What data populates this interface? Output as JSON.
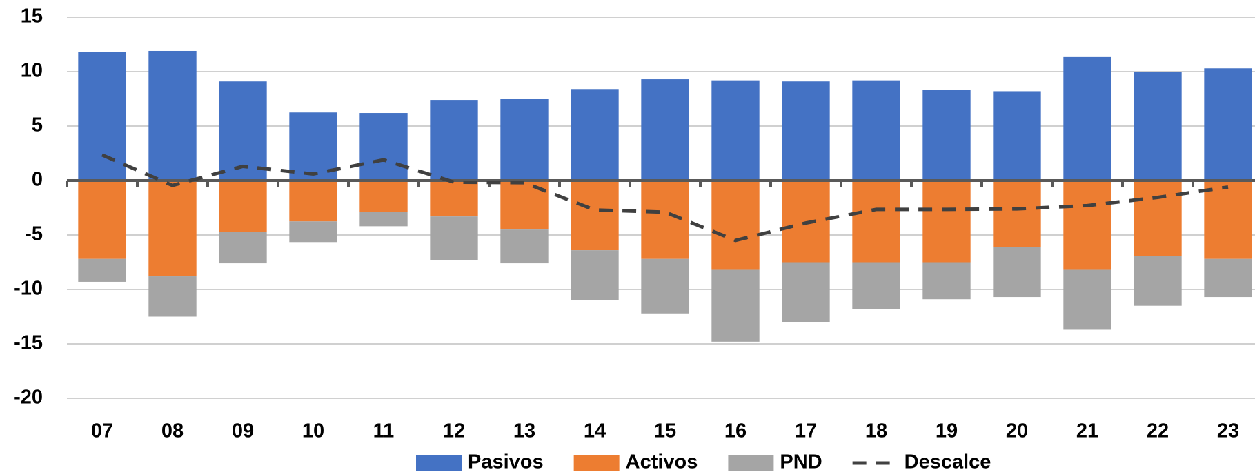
{
  "chart_data": {
    "type": "bar",
    "categories": [
      "07",
      "08",
      "09",
      "10",
      "11",
      "12",
      "13",
      "14",
      "15",
      "16",
      "17",
      "18",
      "19",
      "20",
      "21",
      "22",
      "23"
    ],
    "series": [
      {
        "name": "Pasivos",
        "color": "#4472c4",
        "type": "bar",
        "values": [
          11.8,
          11.9,
          9.1,
          6.25,
          6.2,
          7.4,
          7.5,
          8.4,
          9.3,
          9.2,
          9.1,
          9.2,
          8.3,
          8.2,
          11.4,
          10.0,
          10.3
        ]
      },
      {
        "name": "Activos",
        "color": "#ed7d31",
        "type": "bar",
        "values": [
          -7.2,
          -8.8,
          -4.7,
          -3.75,
          -2.9,
          -3.3,
          -4.5,
          -6.4,
          -7.2,
          -8.2,
          -7.5,
          -7.5,
          -7.5,
          -6.1,
          -8.2,
          -6.9,
          -7.2
        ]
      },
      {
        "name": "PND",
        "color": "#a5a5a5",
        "type": "bar",
        "values": [
          -2.1,
          -3.7,
          -2.9,
          -1.9,
          -1.3,
          -4.0,
          -3.1,
          -4.6,
          -5.0,
          -6.6,
          -5.5,
          -4.3,
          -3.4,
          -4.6,
          -5.5,
          -4.6,
          -3.5
        ]
      },
      {
        "name": "Descalce",
        "color": "#404040",
        "type": "line",
        "values": [
          2.35,
          -0.45,
          1.3,
          0.6,
          1.9,
          -0.15,
          -0.2,
          -2.7,
          -2.9,
          -5.5,
          -3.9,
          -2.65,
          -2.65,
          -2.6,
          -2.3,
          -1.55,
          -0.6
        ]
      }
    ],
    "stacked": true,
    "ylim": [
      -20,
      15
    ],
    "yticks": [
      -20,
      -15,
      -10,
      -5,
      0,
      5,
      10,
      15
    ],
    "grid": true,
    "legend": "bottom"
  }
}
